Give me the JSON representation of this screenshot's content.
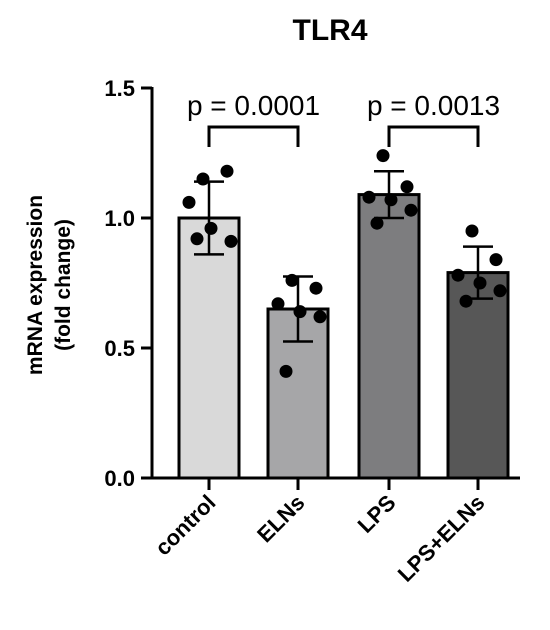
{
  "chart_data": {
    "type": "bar",
    "title": "TLR4",
    "xlabel": "",
    "ylabel_line1": "mRNA expression",
    "ylabel_line2": "(fold change)",
    "ylim": [
      0,
      1.5
    ],
    "yticks": [
      "0.0",
      "0.5",
      "1.0",
      "1.5"
    ],
    "ytick_values": [
      0.0,
      0.5,
      1.0,
      1.5
    ],
    "grid": false,
    "categories": [
      "control",
      "ELNs",
      "LPS",
      "LPS+ELNs"
    ],
    "means": [
      1.0,
      0.65,
      1.09,
      0.79
    ],
    "sd": [
      0.14,
      0.125,
      0.09,
      0.1
    ],
    "bar_colors": [
      "#d9d9d9",
      "#a6a6a8",
      "#7d7d7f",
      "#575757"
    ],
    "points": [
      [
        1.15,
        1.18,
        1.06,
        0.96,
        0.91,
        0.92
      ],
      [
        0.76,
        0.73,
        0.67,
        0.64,
        0.62,
        0.41
      ],
      [
        1.24,
        1.12,
        1.08,
        1.07,
        1.03,
        0.98
      ],
      [
        0.95,
        0.84,
        0.78,
        0.75,
        0.72,
        0.68
      ]
    ],
    "annotations": [
      {
        "from": 0,
        "to": 1,
        "label": "p = 0.0001",
        "bracket_y": 1.35
      },
      {
        "from": 2,
        "to": 3,
        "label": "p = 0.0013",
        "bracket_y": 1.35
      }
    ]
  }
}
